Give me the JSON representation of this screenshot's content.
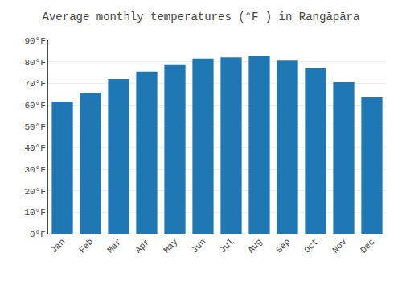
{
  "chart_data": {
    "type": "bar",
    "title": "Average monthly temperatures (°F ) in Rangāpāra",
    "categories": [
      "Jan",
      "Feb",
      "Mar",
      "Apr",
      "May",
      "Jun",
      "Jul",
      "Aug",
      "Sep",
      "Oct",
      "Nov",
      "Dec"
    ],
    "values": [
      61.5,
      65.5,
      72.0,
      75.5,
      78.5,
      81.5,
      82.0,
      82.5,
      80.5,
      77.0,
      70.5,
      63.5
    ],
    "ylim": [
      0,
      90
    ],
    "yticks": [
      {
        "value": 0,
        "label": "0°F"
      },
      {
        "value": 10,
        "label": "10°F"
      },
      {
        "value": 20,
        "label": "20°F"
      },
      {
        "value": 30,
        "label": "30°F"
      },
      {
        "value": 40,
        "label": "40°F"
      },
      {
        "value": 50,
        "label": "50°F"
      },
      {
        "value": 60,
        "label": "60°F"
      },
      {
        "value": 70,
        "label": "70°F"
      },
      {
        "value": 80,
        "label": "80°F"
      },
      {
        "value": 90,
        "label": "90°F"
      }
    ],
    "grid": true
  }
}
